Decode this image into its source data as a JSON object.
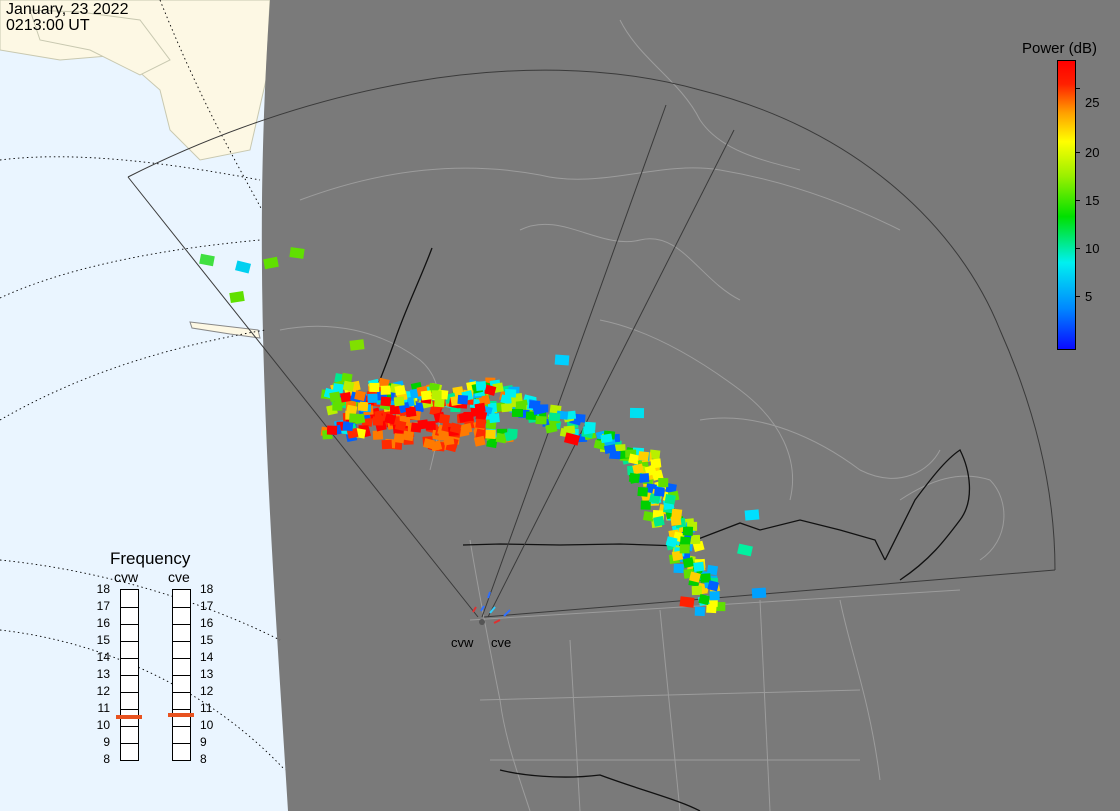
{
  "timestamp": {
    "date": "January, 23 2022",
    "time": "0213:00 UT"
  },
  "colorbar": {
    "title": "Power (dB)",
    "ticks": [
      "25",
      "20",
      "15",
      "10",
      "5"
    ],
    "colors": {
      "low": "#0a0aff",
      "mid": "#00e000",
      "high": "#ff0000"
    }
  },
  "frequency_panel": {
    "title": "Frequency",
    "radars": [
      {
        "code": "cvw",
        "selected_mhz": 10.5
      },
      {
        "code": "cve",
        "selected_mhz": 10.6
      }
    ],
    "scale": [
      "18",
      "17",
      "16",
      "15",
      "14",
      "13",
      "12",
      "11",
      "10",
      "9",
      "8"
    ],
    "bar_color": "#e8521f"
  },
  "sites": [
    {
      "code": "cvw"
    },
    {
      "code": "cve"
    }
  ],
  "map_colors": {
    "ocean": "#eaf5ff",
    "land_day": "#fdf8e4",
    "night": "#7a7a7a",
    "borders": "#9c9c9c"
  }
}
